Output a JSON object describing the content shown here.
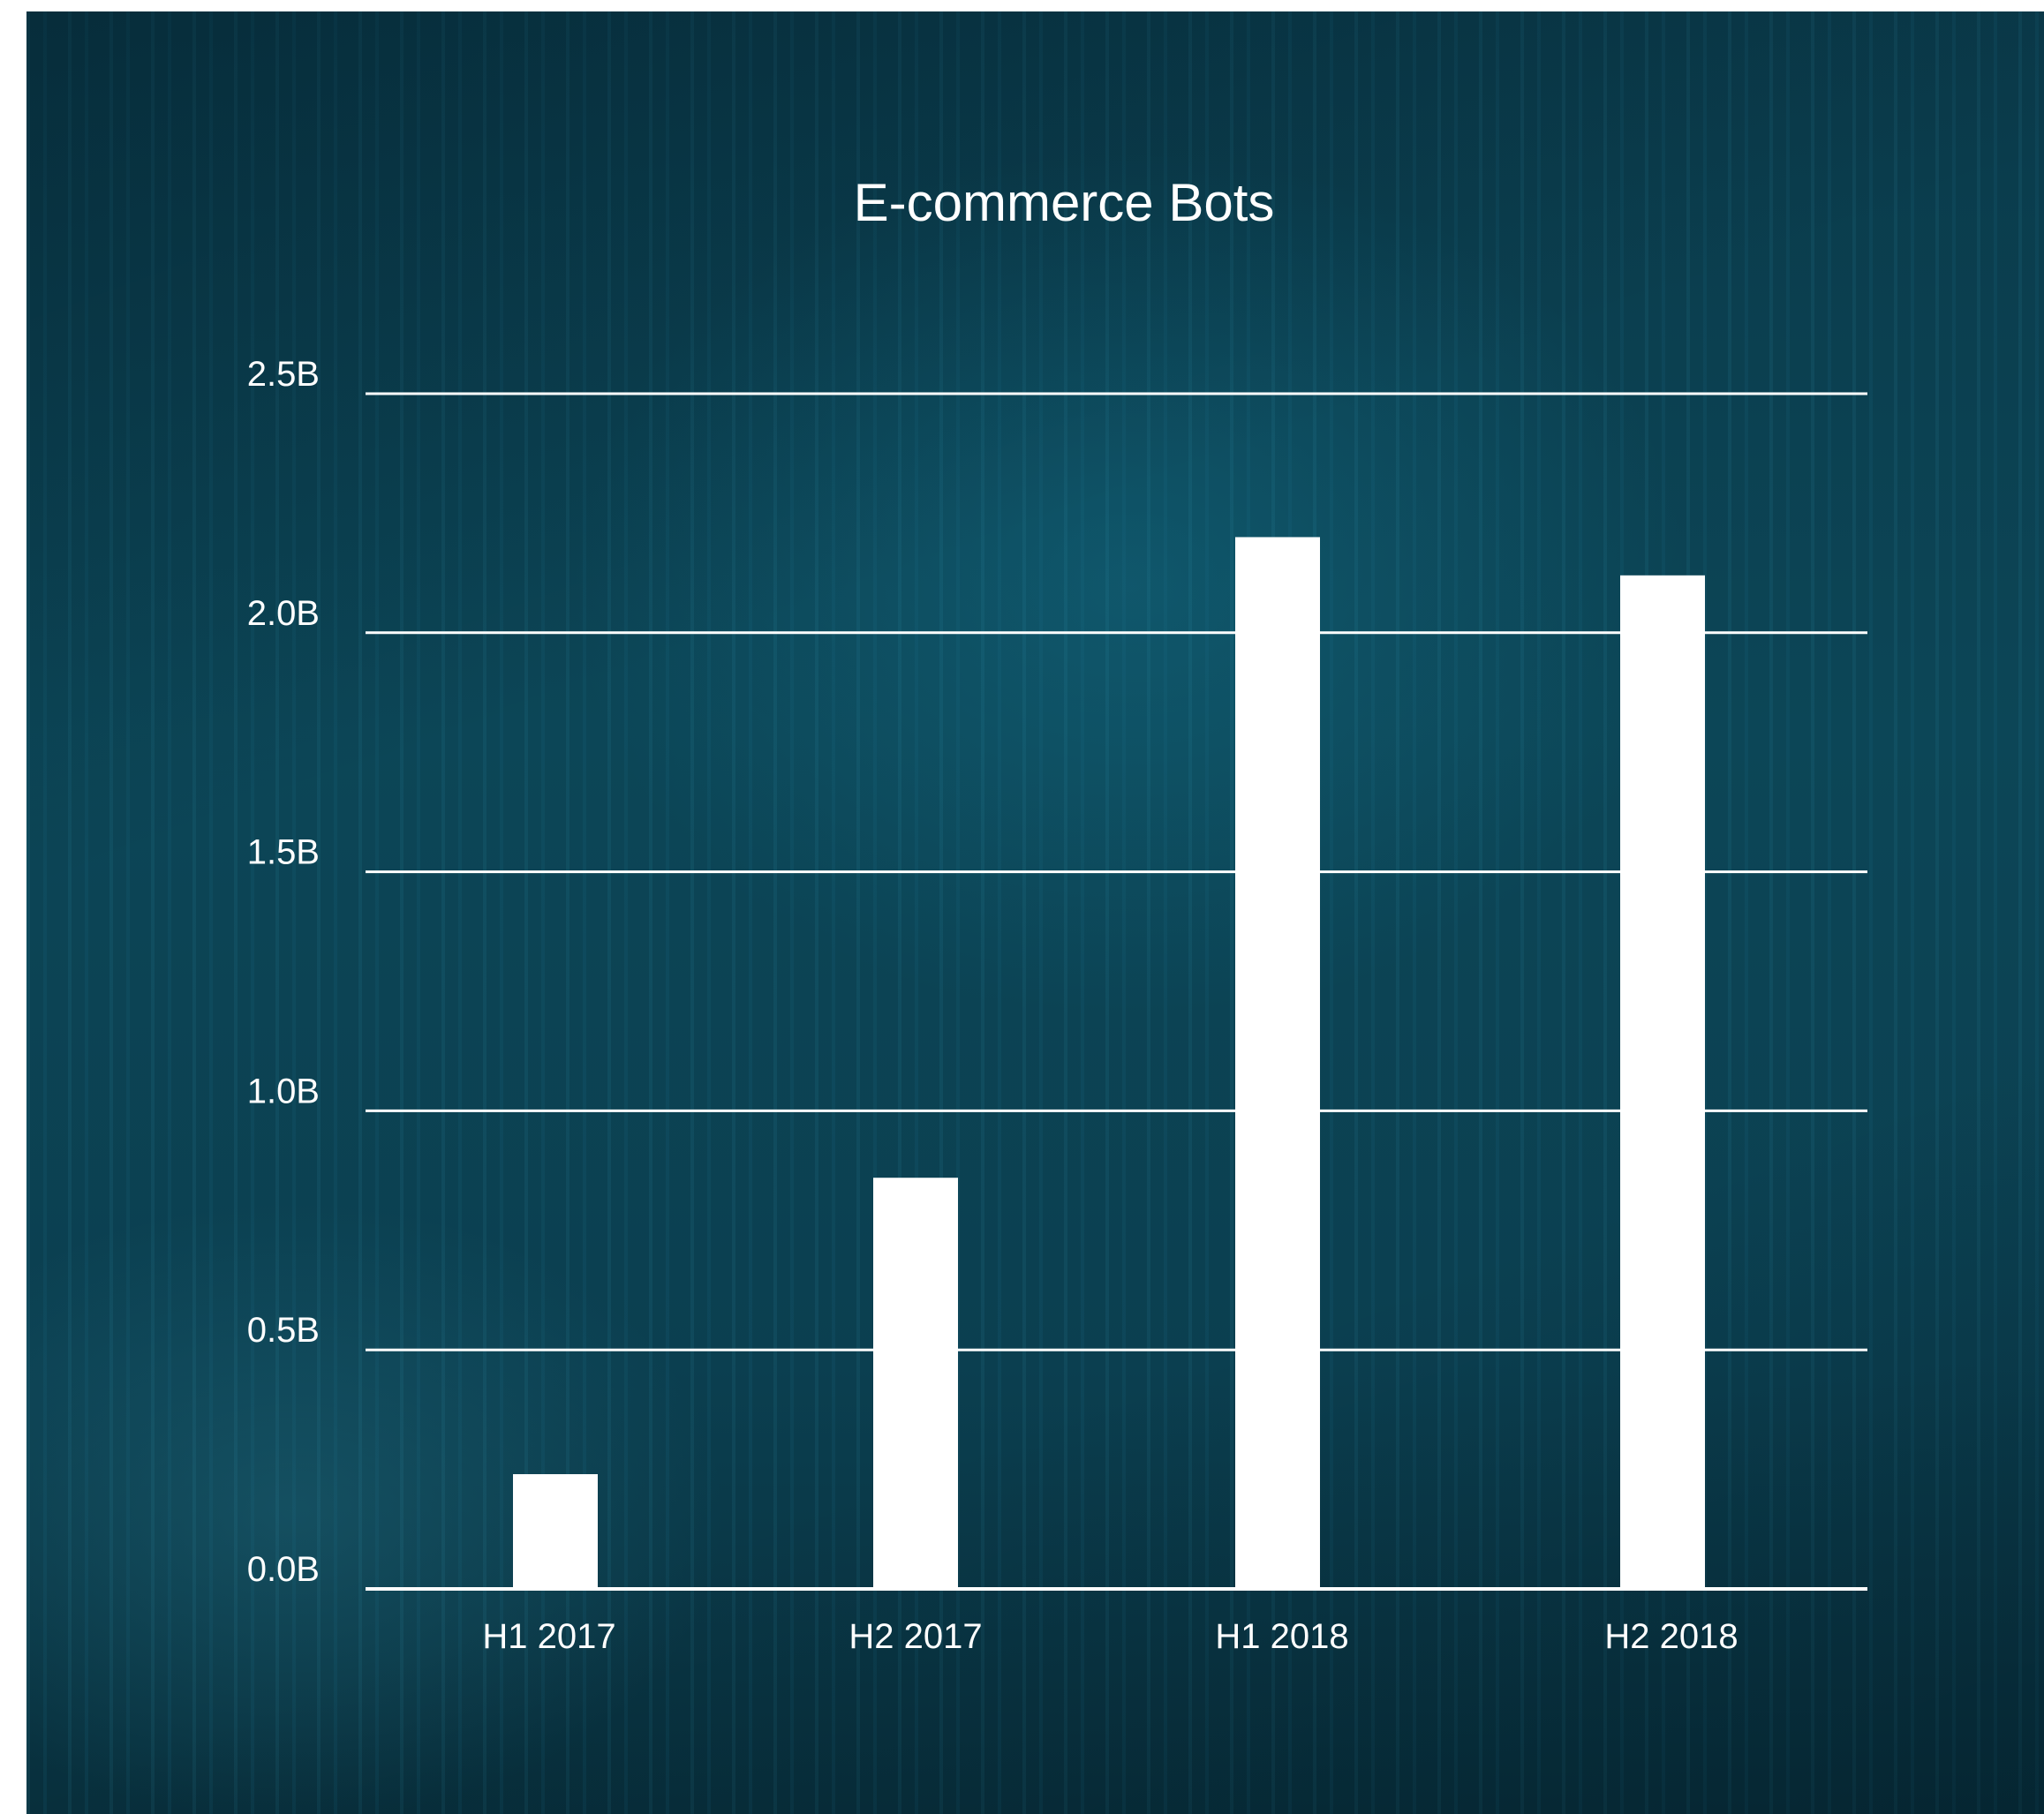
{
  "chart_data": {
    "type": "bar",
    "title": "E-commerce Bots",
    "categories": [
      "H1 2017",
      "H2 2017",
      "H1 2018",
      "H2 2018"
    ],
    "values": [
      0.24,
      0.86,
      2.2,
      2.12
    ],
    "ylim": [
      0,
      2.5
    ],
    "yticks": [
      0,
      0.5,
      1.0,
      1.5,
      2.0,
      2.5
    ],
    "ytick_labels": [
      "0.0B",
      "0.5B",
      "1.0B",
      "1.5B",
      "2.0B",
      "2.5B"
    ],
    "xlabel": "",
    "ylabel": "",
    "grid": true,
    "colors": {
      "bar": "#ffffff",
      "grid": "#ffffff",
      "text": "#ffffff",
      "background": "#0c4657"
    }
  }
}
